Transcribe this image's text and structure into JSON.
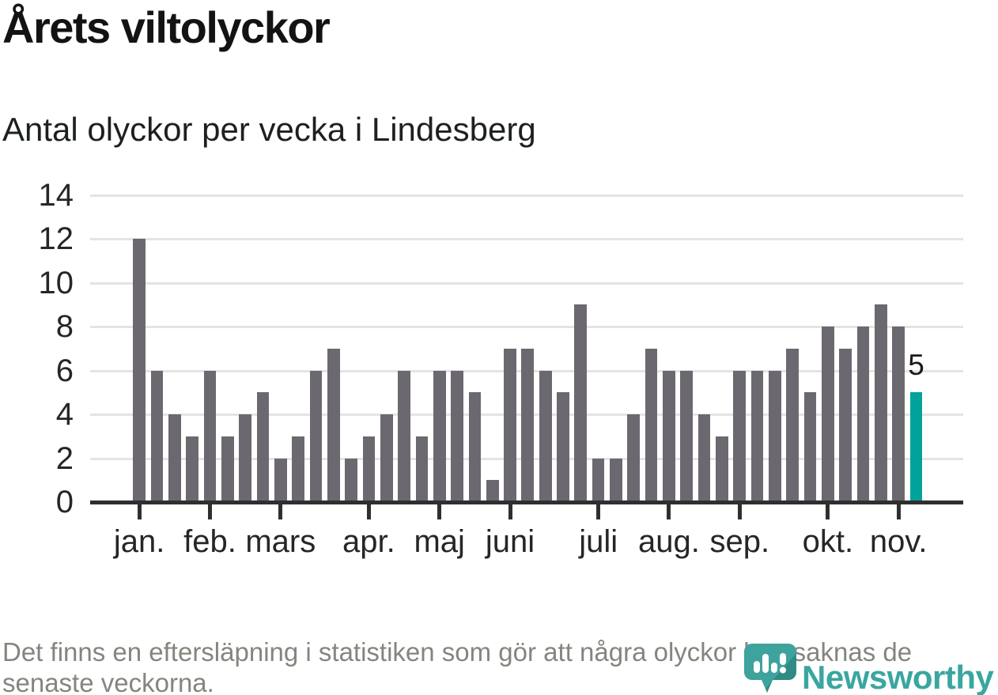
{
  "title": "Årets viltolyckor",
  "subtitle": "Antal olyckor per vecka i Lindesberg",
  "footnote_lines": [
    "Det finns en eftersläpning i statistiken som gör att några olyckor kan saknas de",
    "senaste veckorna."
  ],
  "logo": {
    "text": "Newsworthy",
    "icon": "bar-chart-speech-bubble-icon"
  },
  "colors": {
    "bar": "#6c6870",
    "highlight": "#00a29b",
    "brand_teal": "#3aa6a0",
    "axis": "#2f2f2f",
    "grid": "#e4e4e4"
  },
  "chart_data": {
    "type": "bar",
    "title": "Årets viltolyckor",
    "subtitle": "Antal olyckor per vecka i Lindesberg",
    "xlabel": "",
    "ylabel": "",
    "x_unit": "vecka",
    "values": [
      12,
      6,
      4,
      3,
      6,
      3,
      4,
      5,
      2,
      3,
      6,
      7,
      2,
      3,
      4,
      6,
      3,
      6,
      6,
      5,
      1,
      7,
      7,
      6,
      5,
      9,
      2,
      2,
      4,
      7,
      6,
      6,
      4,
      3,
      6,
      6,
      6,
      7,
      5,
      8,
      7,
      8,
      9,
      8,
      5
    ],
    "highlight_last": true,
    "last_value_label": "5",
    "ylim": [
      0,
      14
    ],
    "yticks": [
      0,
      2,
      4,
      6,
      8,
      10,
      12,
      14
    ],
    "grid": true,
    "legend": false,
    "month_ticks": [
      {
        "label": "jan.",
        "week": 1
      },
      {
        "label": "feb.",
        "week": 5
      },
      {
        "label": "mars",
        "week": 9
      },
      {
        "label": "apr.",
        "week": 14
      },
      {
        "label": "maj",
        "week": 18
      },
      {
        "label": "juni",
        "week": 22
      },
      {
        "label": "juli",
        "week": 27
      },
      {
        "label": "aug.",
        "week": 31
      },
      {
        "label": "sep.",
        "week": 35
      },
      {
        "label": "okt.",
        "week": 40
      },
      {
        "label": "nov.",
        "week": 44
      }
    ]
  }
}
